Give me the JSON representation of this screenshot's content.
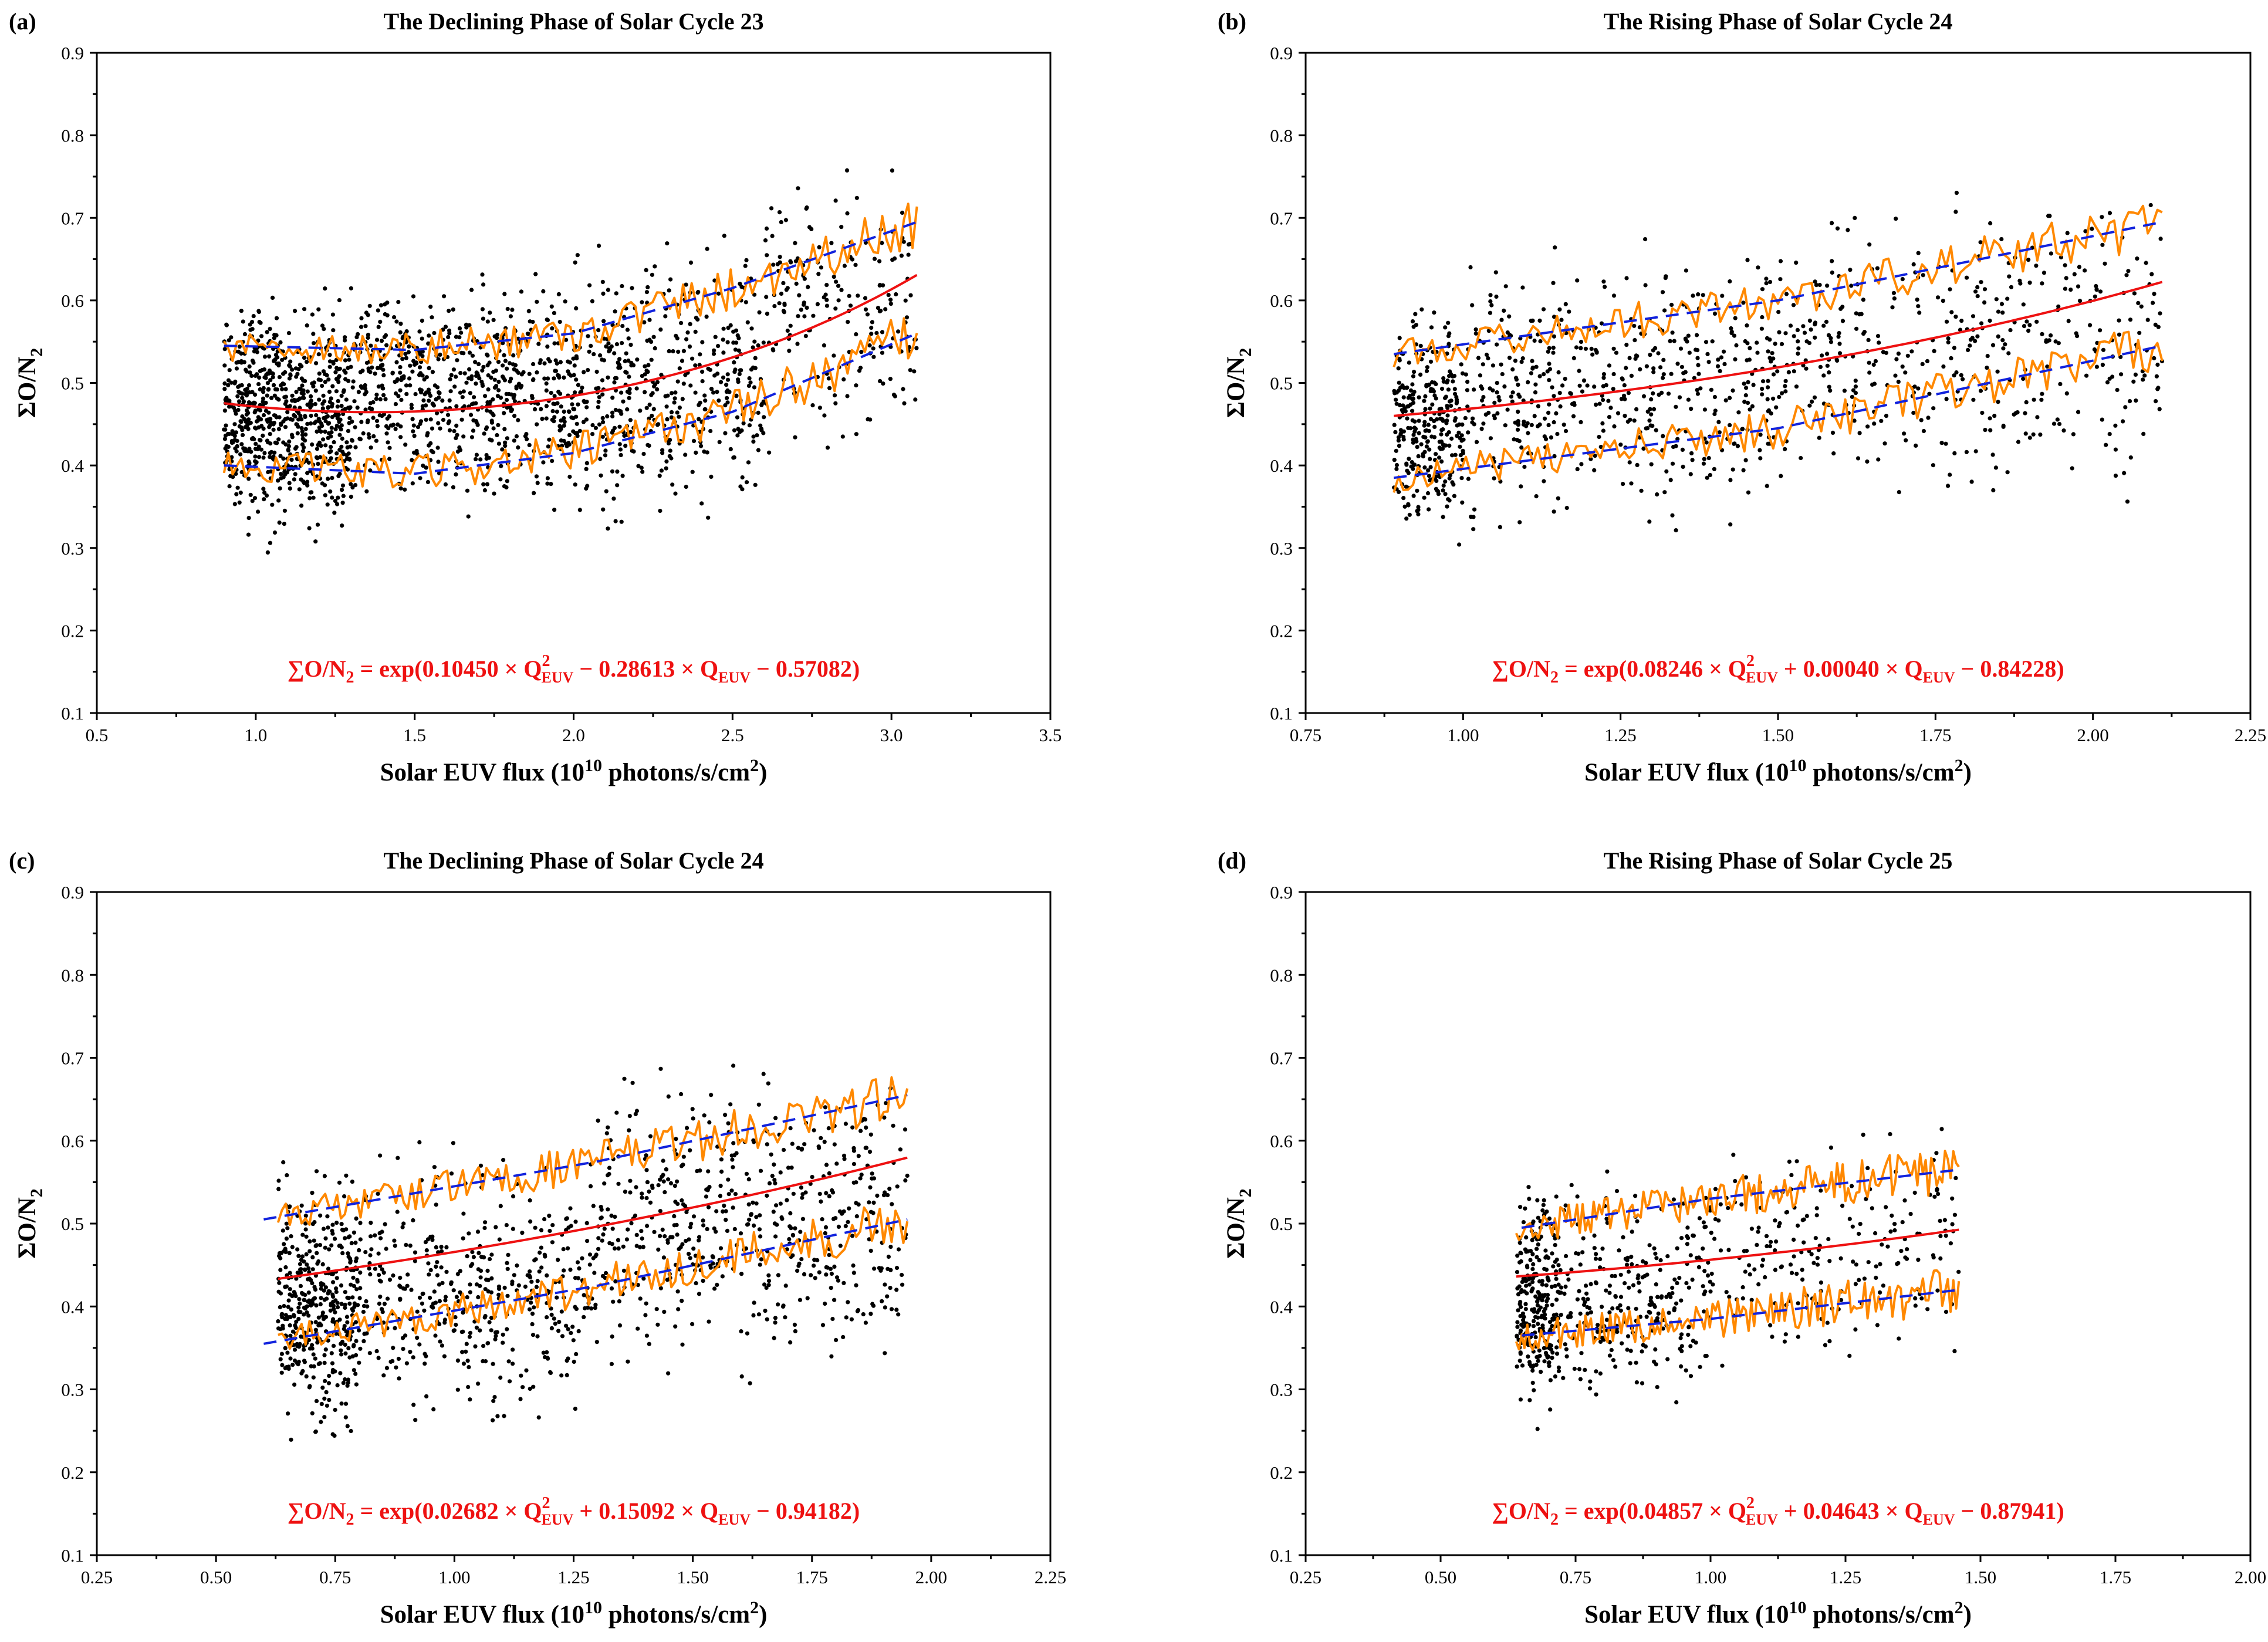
{
  "chart_data": [
    {
      "type": "scatter",
      "panel_label": "(a)",
      "title": "The Declining Phase of Solar Cycle 23",
      "xlabel": "Solar EUV flux (10^10 photons/s/cm^2)",
      "ylabel": "ΣO/N2",
      "xlim": [
        0.5,
        3.5
      ],
      "ylim": [
        0.1,
        0.9
      ],
      "xticks": [
        "0.5",
        "1.0",
        "1.5",
        "2.0",
        "2.5",
        "3.0",
        "3.5"
      ],
      "yticks": [
        "0.1",
        "0.2",
        "0.3",
        "0.4",
        "0.5",
        "0.6",
        "0.7",
        "0.8",
        "0.9"
      ],
      "equation": "∑O/N2 = exp(0.10450 × Q2EUV − 0.28613 × QEUV − 0.57082)",
      "equation_parts": {
        "lhs": "∑O/N",
        "lhs_sub": "2",
        "p1": " = exp(0.10450 × Q",
        "sup2": "2",
        "euv": "EUV",
        "p2": "  − 0.28613 × Q",
        "p3": " − 0.57082)"
      },
      "fit": {
        "a": 0.1045,
        "b": -0.28613,
        "c": -0.57082
      },
      "band": {
        "upper": [
          [
            0.9,
            0.545
          ],
          [
            1.5,
            0.54
          ],
          [
            2.0,
            0.56
          ],
          [
            2.5,
            0.615
          ],
          [
            3.08,
            0.695
          ]
        ],
        "lower": [
          [
            0.9,
            0.4
          ],
          [
            1.5,
            0.39
          ],
          [
            2.0,
            0.415
          ],
          [
            2.5,
            0.465
          ],
          [
            3.08,
            0.56
          ]
        ]
      },
      "x_range": [
        0.9,
        3.08
      ],
      "cloud": [
        {
          "x": [
            0.9,
            1.3
          ],
          "ylo": 0.28,
          "yhi": 0.64,
          "n": 700
        },
        {
          "x": [
            1.3,
            2.0
          ],
          "ylo": 0.32,
          "yhi": 0.66,
          "n": 650
        },
        {
          "x": [
            2.0,
            2.6
          ],
          "ylo": 0.3,
          "yhi": 0.7,
          "n": 450
        },
        {
          "x": [
            2.6,
            3.08
          ],
          "ylo": 0.38,
          "yhi": 0.78,
          "n": 200
        }
      ]
    },
    {
      "type": "scatter",
      "panel_label": "(b)",
      "title": "The Rising Phase of Solar Cycle 24",
      "xlabel": "Solar EUV flux (10^10 photons/s/cm^2)",
      "ylabel": "ΣO/N2",
      "xlim": [
        0.75,
        2.25
      ],
      "ylim": [
        0.1,
        0.9
      ],
      "xticks": [
        "0.75",
        "1.00",
        "1.25",
        "1.50",
        "1.75",
        "2.00",
        "2.25"
      ],
      "yticks": [
        "0.1",
        "0.2",
        "0.3",
        "0.4",
        "0.5",
        "0.6",
        "0.7",
        "0.8",
        "0.9"
      ],
      "equation": "∑O/N2 = exp(0.08246 × Q2EUV + 0.00040 × QEUV − 0.84228)",
      "equation_parts": {
        "lhs": "∑O/N",
        "lhs_sub": "2",
        "p1": " = exp(0.08246 × Q",
        "sup2": "2",
        "euv": "EUV",
        "p2": " + 0.00040 × Q",
        "p3": " − 0.84228)"
      },
      "fit": {
        "a": 0.08246,
        "b": 0.0004,
        "c": -0.84228
      },
      "band": {
        "upper": [
          [
            0.89,
            0.535
          ],
          [
            1.5,
            0.6
          ],
          [
            2.11,
            0.695
          ]
        ],
        "lower": [
          [
            0.89,
            0.385
          ],
          [
            1.5,
            0.445
          ],
          [
            2.11,
            0.545
          ]
        ]
      },
      "x_range": [
        0.89,
        2.11
      ],
      "cloud": [
        {
          "x": [
            0.89,
            1.0
          ],
          "ylo": 0.28,
          "yhi": 0.62,
          "n": 300
        },
        {
          "x": [
            1.0,
            1.5
          ],
          "ylo": 0.28,
          "yhi": 0.7,
          "n": 500
        },
        {
          "x": [
            1.5,
            2.11
          ],
          "ylo": 0.32,
          "yhi": 0.78,
          "n": 420
        }
      ]
    },
    {
      "type": "scatter",
      "panel_label": "(c)",
      "title": "The Declining Phase of Solar Cycle 24",
      "xlabel": "Solar EUV flux (10^10 photons/s/cm^2)",
      "ylabel": "ΣO/N2",
      "xlim": [
        0.25,
        2.25
      ],
      "ylim": [
        0.1,
        0.9
      ],
      "xticks": [
        "0.25",
        "0.50",
        "0.75",
        "1.00",
        "1.25",
        "1.50",
        "1.75",
        "2.00",
        "2.25"
      ],
      "yticks": [
        "0.1",
        "0.2",
        "0.3",
        "0.4",
        "0.5",
        "0.6",
        "0.7",
        "0.8",
        "0.9"
      ],
      "equation": "∑O/N2 = exp(0.02682 × Q2EUV + 0.15092 × QEUV − 0.94182)",
      "equation_parts": {
        "lhs": "∑O/N",
        "lhs_sub": "2",
        "p1": " = exp(0.02682 × Q",
        "sup2": "2",
        "euv": "EUV",
        "p2": " + 0.15092 × Q",
        "p3": " − 0.94182)"
      },
      "fit": {
        "a": 0.02682,
        "b": 0.15092,
        "c": -0.94182
      },
      "band": {
        "upper": [
          [
            0.6,
            0.505
          ],
          [
            1.3,
            0.575
          ],
          [
            1.95,
            0.655
          ]
        ],
        "lower": [
          [
            0.6,
            0.355
          ],
          [
            1.3,
            0.425
          ],
          [
            1.95,
            0.505
          ]
        ]
      },
      "x_range": [
        0.63,
        1.95
      ],
      "cloud": [
        {
          "x": [
            0.63,
            0.8
          ],
          "ylo": 0.2,
          "yhi": 0.6,
          "n": 420
        },
        {
          "x": [
            0.8,
            1.3
          ],
          "ylo": 0.22,
          "yhi": 0.62,
          "n": 420
        },
        {
          "x": [
            1.3,
            1.95
          ],
          "ylo": 0.28,
          "yhi": 0.73,
          "n": 520
        }
      ]
    },
    {
      "type": "scatter",
      "panel_label": "(d)",
      "title": "The Rising Phase of Solar Cycle 25",
      "xlabel": "Solar EUV flux (10^10 photons/s/cm^2)",
      "ylabel": "ΣO/N2",
      "xlim": [
        0.25,
        2.0
      ],
      "ylim": [
        0.1,
        0.9
      ],
      "xticks": [
        "0.25",
        "0.50",
        "0.75",
        "1.00",
        "1.25",
        "1.50",
        "1.75",
        "2.00"
      ],
      "yticks": [
        "0.1",
        "0.2",
        "0.3",
        "0.4",
        "0.5",
        "0.6",
        "0.7",
        "0.8",
        "0.9"
      ],
      "equation": "∑O/N2 = exp(0.04857 × Q2EUV + 0.04643 × QEUV − 0.87941)",
      "equation_parts": {
        "lhs": "∑O/N",
        "lhs_sub": "2",
        "p1": " = exp(0.04857 × Q",
        "sup2": "2",
        "euv": "EUV",
        "p2": " + 0.04643 × Q",
        "p3": " − 0.87941)"
      },
      "fit": {
        "a": 0.04857,
        "b": 0.04643,
        "c": -0.87941
      },
      "band": {
        "upper": [
          [
            0.65,
            0.495
          ],
          [
            1.0,
            0.53
          ],
          [
            1.46,
            0.565
          ]
        ],
        "lower": [
          [
            0.65,
            0.365
          ],
          [
            1.0,
            0.385
          ],
          [
            1.46,
            0.42
          ]
        ]
      },
      "x_range": [
        0.64,
        1.46
      ],
      "cloud": [
        {
          "x": [
            0.64,
            0.72
          ],
          "ylo": 0.22,
          "yhi": 0.58,
          "n": 260
        },
        {
          "x": [
            0.72,
            1.0
          ],
          "ylo": 0.25,
          "yhi": 0.58,
          "n": 260
        },
        {
          "x": [
            1.0,
            1.46
          ],
          "ylo": 0.3,
          "yhi": 0.64,
          "n": 200
        }
      ]
    }
  ]
}
